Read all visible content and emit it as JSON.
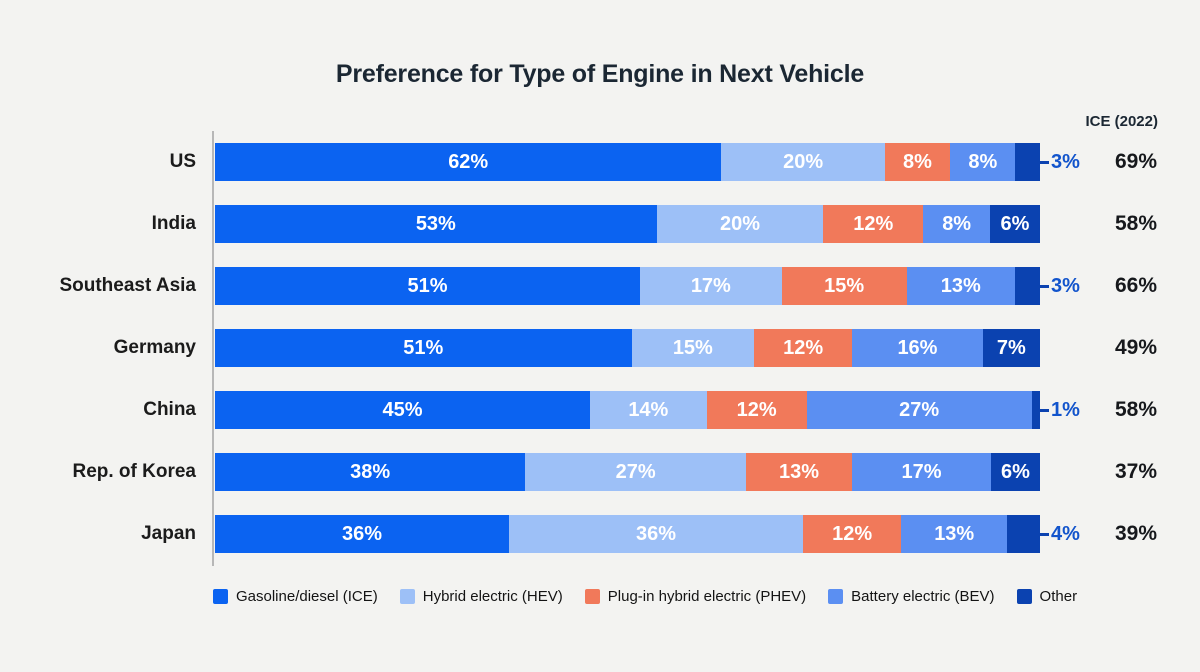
{
  "page": {
    "background": "#f3f3f1"
  },
  "chart_data": {
    "type": "bar",
    "stacked": true,
    "orientation": "horizontal",
    "title": "Preference for Type of Engine in Next Vehicle",
    "value_suffix": "%",
    "categories": [
      "US",
      "India",
      "Southeast Asia",
      "Germany",
      "China",
      "Rep. of Korea",
      "Japan"
    ],
    "series": [
      {
        "name": "Gasoline/diesel (ICE)",
        "color": "#0b63f1",
        "values": [
          62,
          53,
          51,
          51,
          45,
          38,
          36
        ]
      },
      {
        "name": "Hybrid electric (HEV)",
        "color": "#9dc0f7",
        "values": [
          20,
          20,
          17,
          15,
          14,
          27,
          36
        ]
      },
      {
        "name": "Plug-in hybrid electric (PHEV)",
        "color": "#f1795a",
        "values": [
          8,
          12,
          15,
          12,
          12,
          13,
          12
        ]
      },
      {
        "name": "Battery electric (BEV)",
        "color": "#5b8ff2",
        "values": [
          8,
          8,
          13,
          16,
          27,
          17,
          13
        ]
      },
      {
        "name": "Other",
        "color": "#0b42b0",
        "values": [
          3,
          6,
          3,
          7,
          1,
          6,
          4
        ]
      }
    ],
    "other_label_outside": [
      true,
      false,
      true,
      false,
      true,
      false,
      true
    ],
    "outside_label_color": "#1254cc",
    "right_column": {
      "header": "ICE (2022)",
      "values": [
        "69%",
        "58%",
        "66%",
        "49%",
        "58%",
        "37%",
        "39%"
      ]
    },
    "legend_position": "bottom",
    "axis": {
      "y_axis_line": true,
      "gridlines": false,
      "x_range": [
        0,
        100
      ]
    }
  }
}
